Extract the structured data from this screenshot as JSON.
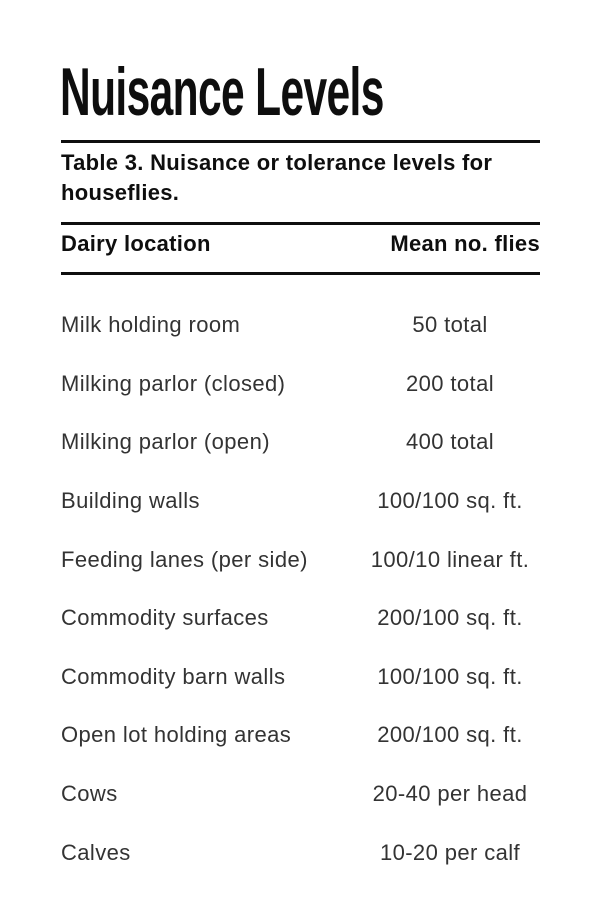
{
  "page": {
    "title": "Nuisance Levels",
    "caption": {
      "line1": "Table 3. Nuisance or tolerance levels for",
      "line2": "houseflies."
    },
    "table": {
      "columns": [
        "Dairy location",
        "Mean no. flies"
      ],
      "rows": [
        {
          "location": "Milk holding room",
          "flies": "50 total"
        },
        {
          "location": "Milking parlor (closed)",
          "flies": "200 total"
        },
        {
          "location": "Milking parlor (open)",
          "flies": "400 total"
        },
        {
          "location": "Building walls",
          "flies": "100/100 sq. ft."
        },
        {
          "location": "Feeding lanes (per side)",
          "flies": "100/10 linear ft."
        },
        {
          "location": "Commodity surfaces",
          "flies": "200/100 sq. ft."
        },
        {
          "location": "Commodity barn walls",
          "flies": "100/100 sq. ft."
        },
        {
          "location": "Open lot holding areas",
          "flies": "200/100 sq. ft."
        },
        {
          "location": "Cows",
          "flies": "20-40 per head"
        },
        {
          "location": "Calves",
          "flies": "10-20 per calf"
        }
      ]
    },
    "colors": {
      "background": "#ffffff",
      "heading_text": "#0e0e0e",
      "body_text": "#333333",
      "rule": "#0e0e0e"
    }
  }
}
